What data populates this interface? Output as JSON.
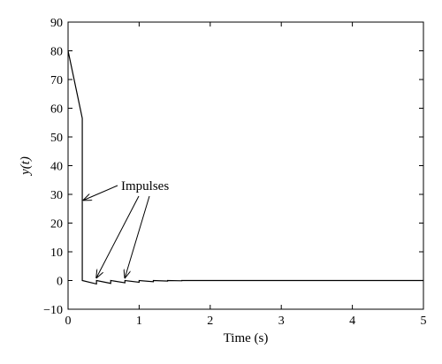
{
  "chart_data": {
    "type": "line",
    "title": "",
    "xlabel": "Time (s)",
    "ylabel": "y(t)",
    "xlim": [
      0,
      5
    ],
    "ylim": [
      -10,
      90
    ],
    "xticks": [
      0,
      1,
      2,
      3,
      4,
      5
    ],
    "yticks": [
      -10,
      0,
      10,
      20,
      30,
      40,
      50,
      60,
      70,
      80,
      90
    ],
    "grid": false,
    "legend": "none",
    "line_color": "#000000",
    "series": [
      {
        "x": [
          0,
          0.2,
          0.2,
          0.4,
          0.4,
          0.6,
          0.6,
          0.8,
          0.8,
          1.0,
          1.0,
          1.2,
          1.2,
          1.4,
          1.4,
          1.6,
          1.6,
          5.0
        ],
        "y": [
          80,
          56.5,
          0,
          -1.2,
          0,
          -1.0,
          0,
          -0.8,
          0,
          -0.6,
          0,
          -0.4,
          0,
          -0.2,
          0,
          -0.1,
          0,
          0
        ]
      }
    ],
    "annotations": [
      {
        "text": "Impulses",
        "arrows_to": [
          {
            "x": 0.22,
            "y": 28
          },
          {
            "x": 0.4,
            "y": 1
          },
          {
            "x": 0.8,
            "y": 1
          }
        ]
      }
    ]
  }
}
